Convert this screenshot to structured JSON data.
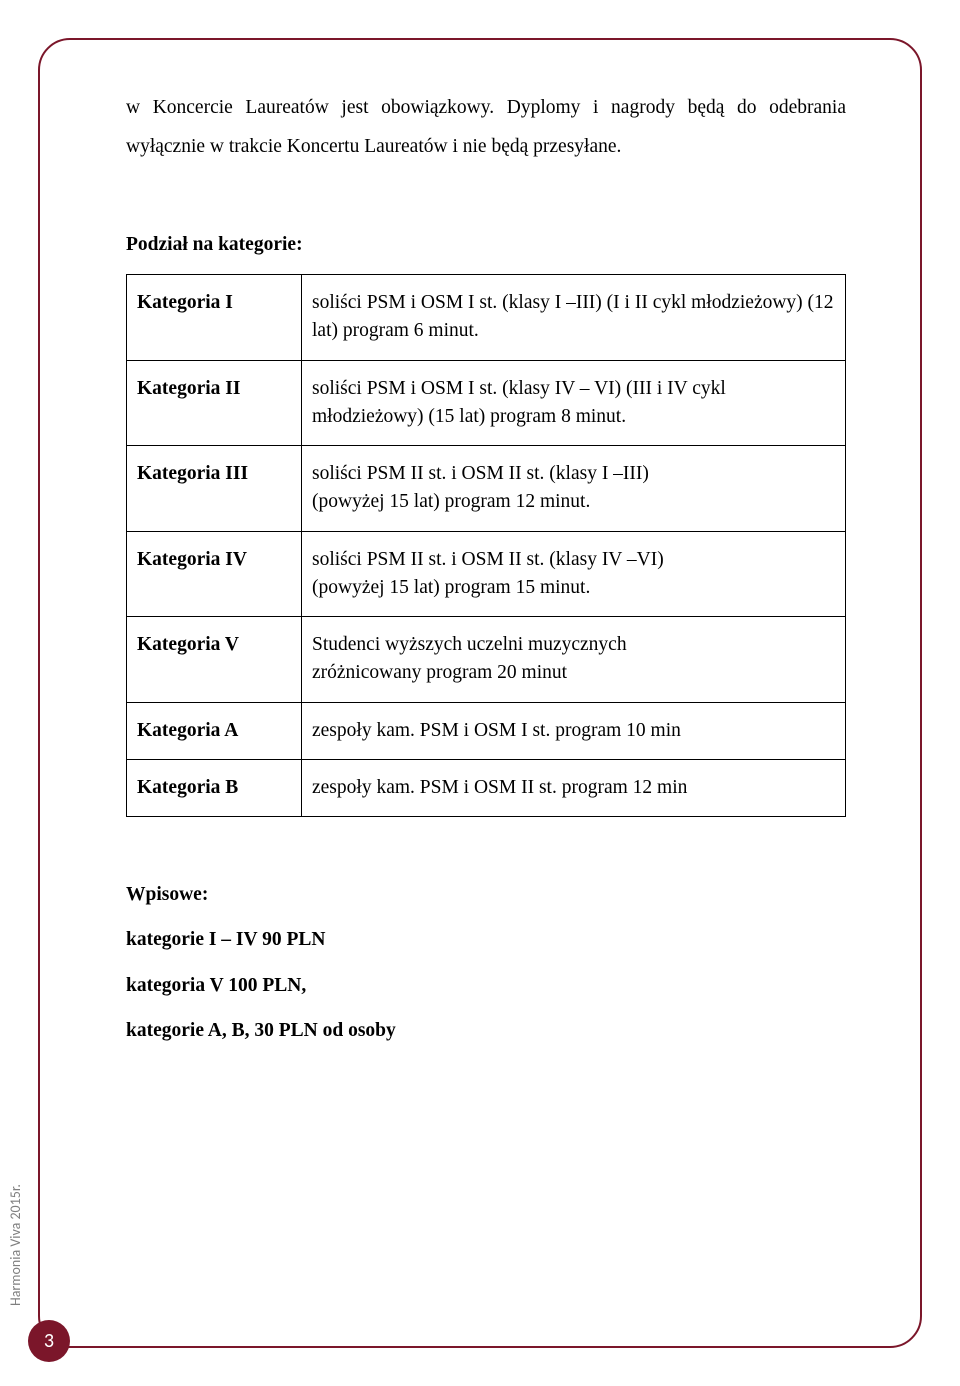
{
  "page": {
    "frame_color": "#7b162a",
    "background_color": "#ffffff",
    "text_color": "#000000",
    "side_label": "Harmonia Viva 2015r.",
    "side_label_color": "#7f7f7f",
    "page_number": "3",
    "body_font": "Times New Roman",
    "body_fontsize_pt": 14
  },
  "paragraph": "w Koncercie Laureatów jest obowiązkowy. Dyplomy i nagrody będą do odebrania wyłącznie w trakcie Koncertu Laureatów i nie będą przesyłane.",
  "categories": {
    "heading": "Podział na kategorie:",
    "rows": [
      {
        "label": "Kategoria I",
        "desc": "soliści PSM i OSM I st. (klasy I –III) (I i II cykl młodzieżowy) (12 lat) program 6 minut."
      },
      {
        "label": "Kategoria II",
        "desc": "soliści PSM i OSM I st. (klasy IV – VI) (III i IV cykl młodzieżowy) (15 lat) program 8 minut."
      },
      {
        "label": "Kategoria III",
        "desc": "soliści PSM II st. i OSM II st. (klasy I –III)\n(powyżej 15 lat) program 12 minut."
      },
      {
        "label": "Kategoria IV",
        "desc": "soliści PSM II st. i OSM II st. (klasy IV –VI)\n(powyżej 15 lat) program 15 minut."
      },
      {
        "label": "Kategoria V",
        "desc": "Studenci wyższych uczelni muzycznych\nzróżnicowany program 20 minut"
      },
      {
        "label": "Kategoria A",
        "desc": "zespoły kam. PSM i OSM I st. program 10 min"
      },
      {
        "label": "Kategoria B",
        "desc": "zespoły kam. PSM i OSM II st. program 12 min"
      }
    ]
  },
  "fees": {
    "heading": "Wpisowe:",
    "lines": [
      "kategorie I – IV 90 PLN",
      "kategoria V 100 PLN,",
      "kategorie A, B, 30 PLN od osoby"
    ]
  }
}
